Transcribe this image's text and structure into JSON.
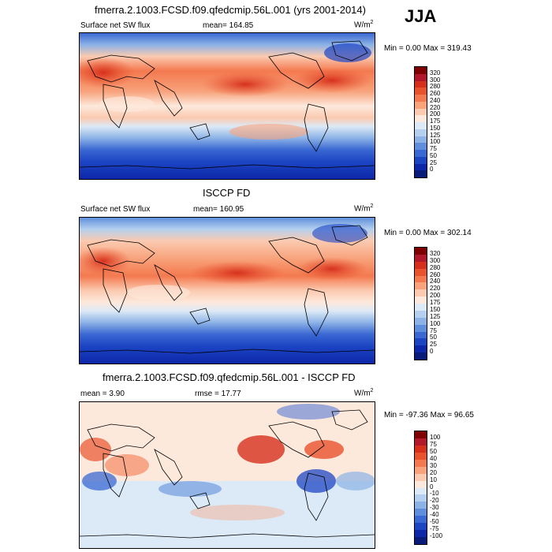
{
  "season": "JJA",
  "panels": [
    {
      "title": "fmerra.2.1003.FCSD.f09.qfedcmip.56L.001 (yrs 2001-2014)",
      "left_label": "Surface net SW flux",
      "center_label": "mean=  164.85",
      "units": "W/m",
      "units_sup": "2",
      "stats": "Min =   0.00 Max = 319.43",
      "colorbar_labels": [
        "320",
        "300",
        "280",
        "260",
        "240",
        "220",
        "200",
        "175",
        "150",
        "125",
        "100",
        "75",
        "50",
        "25",
        "0"
      ],
      "colorbar_colors": [
        "#7f0000",
        "#b2182b",
        "#d6301d",
        "#e8532d",
        "#f4794f",
        "#f8a37c",
        "#fbcab0",
        "#fde9dc",
        "#dce9f6",
        "#b5d0ee",
        "#8cb2e6",
        "#5f8fdc",
        "#3a68d2",
        "#1c45c4",
        "#0c27a8",
        "#081a7a"
      ]
    },
    {
      "title": "ISCCP FD",
      "left_label": "Surface net SW flux",
      "center_label": "mean=  160.95",
      "units": "W/m",
      "units_sup": "2",
      "stats": "Min =   0.00 Max = 302.14",
      "colorbar_labels": [
        "320",
        "300",
        "280",
        "260",
        "240",
        "220",
        "200",
        "175",
        "150",
        "125",
        "100",
        "75",
        "50",
        "25",
        "0"
      ],
      "colorbar_colors": [
        "#7f0000",
        "#b2182b",
        "#d6301d",
        "#e8532d",
        "#f4794f",
        "#f8a37c",
        "#fbcab0",
        "#fde9dc",
        "#dce9f6",
        "#b5d0ee",
        "#8cb2e6",
        "#5f8fdc",
        "#3a68d2",
        "#1c45c4",
        "#0c27a8",
        "#081a7a"
      ]
    },
    {
      "title": "fmerra.2.1003.FCSD.f09.qfedcmip.56L.001 - ISCCP FD",
      "left_label": "mean =   3.90",
      "center_label": "rmse =  17.77",
      "units": "W/m",
      "units_sup": "2",
      "stats": "Min = -97.36 Max =  96.65",
      "colorbar_labels": [
        "100",
        "75",
        "50",
        "40",
        "30",
        "20",
        "10",
        "0",
        "-10",
        "-20",
        "-30",
        "-40",
        "-50",
        "-75",
        "-100"
      ],
      "colorbar_colors": [
        "#7f0000",
        "#b2182b",
        "#d6301d",
        "#e8532d",
        "#f4794f",
        "#f8a37c",
        "#fbcab0",
        "#fde9dc",
        "#dce9f6",
        "#b5d0ee",
        "#8cb2e6",
        "#5f8fdc",
        "#3a68d2",
        "#1c45c4",
        "#0c27a8",
        "#081a7a"
      ]
    }
  ]
}
